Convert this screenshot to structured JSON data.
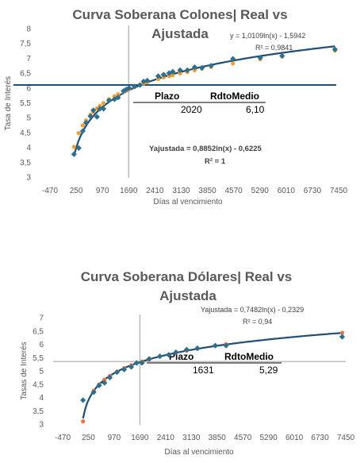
{
  "chart_data": [
    {
      "type": "scatter",
      "title_line1": "Curva Soberana Colones| Real vs",
      "title_line2": "Ajustada",
      "xlabel": "Días al vencimiento",
      "ylabel": "Tasa de Interés",
      "xlim": [
        -470,
        7450
      ],
      "ylim": [
        3,
        8
      ],
      "x_ticks": [
        "-470",
        "250",
        "970",
        "1690",
        "2410",
        "3130",
        "3850",
        "4570",
        "5290",
        "6010",
        "6730",
        "7450"
      ],
      "y_ticks": [
        "3",
        "3,5",
        "4",
        "4,5",
        "5",
        "5,5",
        "6",
        "6,5",
        "7",
        "7,5",
        "8"
      ],
      "fit_real": {
        "text": "y = 1,0109ln(x) - 1,5942",
        "r2": "R² = 0,9841",
        "a": 1.0109,
        "b": -1.5942
      },
      "fit_adjusted": {
        "text": "Yajustada  = 0,8852ln(x) - 0,6225",
        "r2": "R² = 1",
        "a": 0.8852,
        "b": -0.6225
      },
      "crosshair": {
        "x": 1690,
        "y": 6.1
      },
      "table": {
        "h1": "Plazo",
        "h2": "RdtoMedio",
        "v1": "2020",
        "v2": "6,10"
      },
      "colors": {
        "real": "#2e6f8e",
        "adjusted": "#f39c33",
        "fit": "#1f4e79",
        "hline": "#1f4e79",
        "vline": "#bfbfbf"
      },
      "real_points": [
        [
          190,
          3.77
        ],
        [
          320,
          3.98
        ],
        [
          430,
          4.55
        ],
        [
          520,
          4.83
        ],
        [
          640,
          5.05
        ],
        [
          720,
          5.25
        ],
        [
          820,
          5.03
        ],
        [
          900,
          5.3
        ],
        [
          1000,
          5.3
        ],
        [
          1150,
          5.58
        ],
        [
          1300,
          5.62
        ],
        [
          1400,
          5.68
        ],
        [
          1550,
          5.9
        ],
        [
          1620,
          5.95
        ],
        [
          1700,
          6.0
        ],
        [
          1850,
          6.05
        ],
        [
          2000,
          6.1
        ],
        [
          2100,
          6.22
        ],
        [
          2200,
          6.25
        ],
        [
          2500,
          6.4
        ],
        [
          2650,
          6.45
        ],
        [
          2800,
          6.5
        ],
        [
          2900,
          6.55
        ],
        [
          3100,
          6.6
        ],
        [
          3300,
          6.6
        ],
        [
          3500,
          6.7
        ],
        [
          3700,
          6.68
        ],
        [
          3950,
          6.75
        ],
        [
          4550,
          6.98
        ],
        [
          5300,
          7.02
        ],
        [
          5900,
          7.08
        ],
        [
          7350,
          7.3
        ]
      ],
      "adjusted_points": [
        [
          190,
          4.02
        ],
        [
          320,
          4.48
        ],
        [
          430,
          4.74
        ],
        [
          520,
          4.91
        ],
        [
          640,
          5.1
        ],
        [
          720,
          5.2
        ],
        [
          820,
          5.31
        ],
        [
          900,
          5.4
        ],
        [
          1000,
          5.49
        ],
        [
          1150,
          5.62
        ],
        [
          1300,
          5.72
        ],
        [
          1400,
          5.79
        ],
        [
          1550,
          5.88
        ],
        [
          1620,
          5.92
        ],
        [
          1700,
          5.96
        ],
        [
          1850,
          6.03
        ],
        [
          2000,
          6.1
        ],
        [
          2100,
          6.15
        ],
        [
          2200,
          6.19
        ],
        [
          2500,
          6.3
        ],
        [
          2650,
          6.36
        ],
        [
          2800,
          6.4
        ],
        [
          2900,
          6.43
        ],
        [
          3100,
          6.49
        ],
        [
          3300,
          6.54
        ],
        [
          3500,
          6.6
        ],
        [
          3700,
          6.65
        ],
        [
          3950,
          6.71
        ],
        [
          4550,
          6.83
        ],
        [
          5300,
          6.97
        ],
        [
          5900,
          7.06
        ],
        [
          7350,
          7.26
        ]
      ]
    },
    {
      "type": "scatter",
      "title_line1": "Curva Soberana Dólares| Real vs",
      "title_line2": "Ajustada",
      "xlabel": "Días al vencimiento",
      "ylabel": "Tasas de Interés",
      "xlim": [
        -470,
        7450
      ],
      "ylim": [
        3,
        7
      ],
      "x_ticks": [
        "-470",
        "250",
        "970",
        "1690",
        "2410",
        "3130",
        "3850",
        "4570",
        "5290",
        "6010",
        "6730",
        "7450"
      ],
      "y_ticks": [
        "3",
        "3,5",
        "4",
        "4,5",
        "5",
        "5,5",
        "6",
        "6,5",
        "7"
      ],
      "fit_real": {
        "text": "Yajustada = 0,7482ln(x) - 0,2329",
        "r2": "R² = 0,94",
        "a": 0.7482,
        "b": -0.2329
      },
      "crosshair": {
        "x": 1690,
        "y": 5.35
      },
      "table": {
        "h1": "Plazo",
        "h2": "RdtoMedio",
        "v1": "1631",
        "v2": "5,29"
      },
      "colors": {
        "real": "#2e6f8e",
        "adjusted": "#f0743d",
        "fit": "#1f4e79",
        "hline": "#bfbfbf",
        "vline": "#bfbfbf"
      },
      "real_points": [
        [
          100,
          3.9
        ],
        [
          400,
          4.2
        ],
        [
          550,
          4.45
        ],
        [
          700,
          4.55
        ],
        [
          850,
          4.75
        ],
        [
          1050,
          4.95
        ],
        [
          1250,
          5.05
        ],
        [
          1450,
          5.15
        ],
        [
          1600,
          5.3
        ],
        [
          1750,
          5.3
        ],
        [
          1950,
          5.45
        ],
        [
          2250,
          5.55
        ],
        [
          2500,
          5.6
        ],
        [
          2700,
          5.7
        ],
        [
          3000,
          5.8
        ],
        [
          3300,
          5.85
        ],
        [
          3800,
          5.95
        ],
        [
          4100,
          5.95
        ],
        [
          7350,
          6.28
        ]
      ],
      "adjusted_points": [
        [
          100,
          3.1
        ],
        [
          400,
          4.25
        ],
        [
          550,
          4.49
        ],
        [
          700,
          4.67
        ],
        [
          850,
          4.81
        ],
        [
          1050,
          4.97
        ],
        [
          1250,
          5.1
        ],
        [
          1450,
          5.21
        ],
        [
          1600,
          5.29
        ],
        [
          1750,
          5.35
        ],
        [
          1950,
          5.43
        ],
        [
          2250,
          5.54
        ],
        [
          2500,
          5.62
        ],
        [
          2700,
          5.68
        ],
        [
          3000,
          5.76
        ],
        [
          3300,
          5.83
        ],
        [
          3800,
          5.94
        ],
        [
          4100,
          6.0
        ],
        [
          7350,
          6.43
        ]
      ]
    }
  ]
}
